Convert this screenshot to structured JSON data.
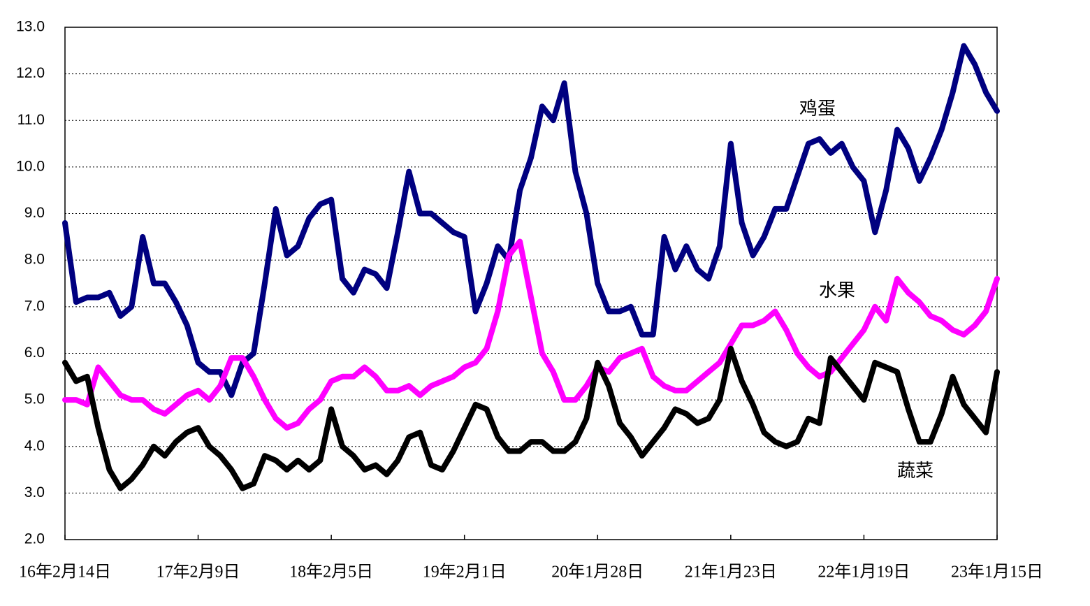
{
  "chart_data": {
    "type": "line",
    "categories": [
      "16年2月14日",
      null,
      null,
      null,
      null,
      null,
      null,
      null,
      null,
      null,
      null,
      null,
      "17年2月9日",
      null,
      null,
      null,
      null,
      null,
      null,
      null,
      null,
      null,
      null,
      null,
      "18年2月5日",
      null,
      null,
      null,
      null,
      null,
      null,
      null,
      null,
      null,
      null,
      null,
      "19年2月1日",
      null,
      null,
      null,
      null,
      null,
      null,
      null,
      null,
      null,
      null,
      null,
      "20年1月28日",
      null,
      null,
      null,
      null,
      null,
      null,
      null,
      null,
      null,
      null,
      null,
      "21年1月23日",
      null,
      null,
      null,
      null,
      null,
      null,
      null,
      null,
      null,
      null,
      null,
      "22年1月19日",
      null,
      null,
      null,
      null,
      null,
      null,
      null,
      null,
      null,
      null,
      null,
      "23年1月15日"
    ],
    "series": [
      {
        "name": "鸡蛋",
        "color": "#000080",
        "values": [
          8.8,
          7.1,
          7.2,
          7.2,
          7.3,
          6.8,
          7.0,
          8.5,
          7.5,
          7.5,
          7.1,
          6.6,
          5.8,
          5.6,
          5.6,
          5.1,
          5.8,
          6.0,
          7.5,
          9.1,
          8.1,
          8.3,
          8.9,
          9.2,
          9.3,
          7.6,
          7.3,
          7.8,
          7.7,
          7.4,
          8.6,
          9.9,
          9.0,
          9.0,
          8.8,
          8.6,
          8.5,
          6.9,
          7.5,
          8.3,
          8.0,
          9.5,
          10.2,
          11.3,
          11.0,
          11.8,
          9.9,
          9.0,
          7.5,
          6.9,
          6.9,
          7.0,
          6.4,
          6.4,
          8.5,
          7.8,
          8.3,
          7.8,
          7.6,
          8.3,
          10.5,
          8.8,
          8.1,
          8.5,
          9.1,
          9.1,
          9.8,
          10.5,
          10.6,
          10.3,
          10.5,
          10.0,
          9.7,
          8.6,
          9.5,
          10.8,
          10.4,
          9.7,
          10.2,
          10.8,
          11.6,
          12.6,
          12.2,
          11.6,
          11.2
        ]
      },
      {
        "name": "水果",
        "color": "#ff00ff",
        "values": [
          5.0,
          5.0,
          4.9,
          5.7,
          5.4,
          5.1,
          5.0,
          5.0,
          4.8,
          4.7,
          4.9,
          5.1,
          5.2,
          5.0,
          5.3,
          5.9,
          5.9,
          5.5,
          5.0,
          4.6,
          4.4,
          4.5,
          4.8,
          5.0,
          5.4,
          5.5,
          5.5,
          5.7,
          5.5,
          5.2,
          5.2,
          5.3,
          5.1,
          5.3,
          5.4,
          5.5,
          5.7,
          5.8,
          6.1,
          6.9,
          8.1,
          8.4,
          7.2,
          6.0,
          5.6,
          5.0,
          5.0,
          5.3,
          5.7,
          5.6,
          5.9,
          6.0,
          6.1,
          5.5,
          5.3,
          5.2,
          5.2,
          5.4,
          5.6,
          5.8,
          6.2,
          6.6,
          6.6,
          6.7,
          6.9,
          6.5,
          6.0,
          5.7,
          5.5,
          5.6,
          5.9,
          6.2,
          6.5,
          7.0,
          6.7,
          7.6,
          7.3,
          7.1,
          6.8,
          6.7,
          6.5,
          6.4,
          6.6,
          6.9,
          7.6
        ]
      },
      {
        "name": "蔬菜",
        "color": "#000000",
        "values": [
          5.8,
          5.4,
          5.5,
          4.4,
          3.5,
          3.1,
          3.3,
          3.6,
          4.0,
          3.8,
          4.1,
          4.3,
          4.4,
          4.0,
          3.8,
          3.5,
          3.1,
          3.2,
          3.8,
          3.7,
          3.5,
          3.7,
          3.5,
          3.7,
          4.8,
          4.0,
          3.8,
          3.5,
          3.6,
          3.4,
          3.7,
          4.2,
          4.3,
          3.6,
          3.5,
          3.9,
          4.4,
          4.9,
          4.8,
          4.2,
          3.9,
          3.9,
          4.1,
          4.1,
          3.9,
          3.9,
          4.1,
          4.6,
          5.8,
          5.3,
          4.5,
          4.2,
          3.8,
          4.1,
          4.4,
          4.8,
          4.7,
          4.5,
          4.6,
          5.0,
          6.1,
          5.4,
          4.9,
          4.3,
          4.1,
          4.0,
          4.1,
          4.6,
          4.5,
          5.9,
          5.6,
          5.3,
          5.0,
          5.8,
          5.7,
          5.6,
          4.8,
          4.1,
          4.1,
          4.7,
          5.5,
          4.9,
          4.6,
          4.3,
          5.6
        ]
      }
    ],
    "ylim": [
      2,
      13
    ],
    "yticks": [
      {
        "value": 2,
        "label": "2.0"
      },
      {
        "value": 3,
        "label": "3.0"
      },
      {
        "value": 4,
        "label": "4.0"
      },
      {
        "value": 5,
        "label": "5.0"
      },
      {
        "value": 6,
        "label": "6.0"
      },
      {
        "value": 7,
        "label": "7.0"
      },
      {
        "value": 8,
        "label": "8.0"
      },
      {
        "value": 9,
        "label": "9.0"
      },
      {
        "value": 10,
        "label": "10.0"
      },
      {
        "value": 11,
        "label": "11.0"
      },
      {
        "value": 12,
        "label": "12.0"
      },
      {
        "value": 13,
        "label": "13.0"
      }
    ],
    "grid": true
  }
}
